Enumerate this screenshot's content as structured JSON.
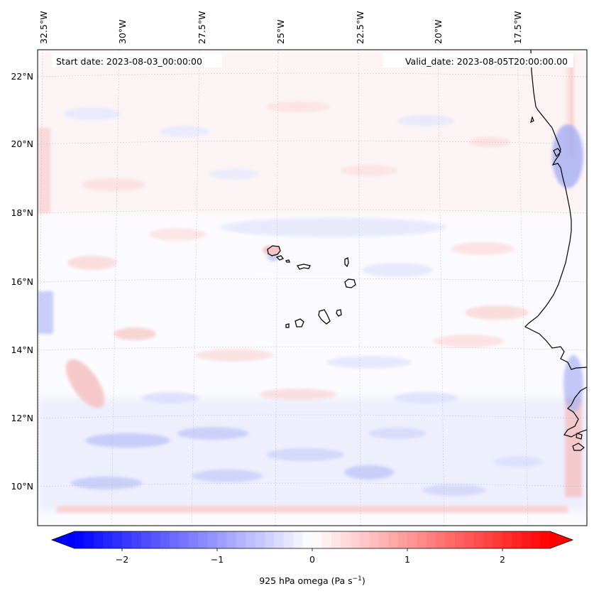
{
  "map": {
    "start_date": "Start date: 2023-08-03_00:00:00",
    "valid_date": "Valid_date: 2023-08-05T20:00:00.00",
    "top_ticks": [
      "32.5°W",
      "30°W",
      "27.5°W",
      "25°W",
      "22.5°W",
      "20°W",
      "17.5°W"
    ],
    "left_ticks": [
      "22°N",
      "20°N",
      "18°N",
      "16°N",
      "14°N",
      "12°N",
      "10°N"
    ],
    "field_description": "925 hPa vertical velocity (omega) shaded with blue-white-red diverging colormap",
    "features": [
      "Cabo Verde islands",
      "West African coastline"
    ]
  },
  "colorbar": {
    "ticks": [
      "−2",
      "−1",
      "0",
      "1",
      "2"
    ],
    "min": -2.6,
    "max": 2.6,
    "label_main": "925 hPa omega (Pa s",
    "label_exp": "−1",
    "label_close": ")",
    "neg_color": "#0000ff",
    "mid_color": "#ffffff",
    "pos_color": "#ff0000"
  },
  "chart_data": {
    "type": "heatmap",
    "title": "",
    "variable": "925 hPa omega",
    "units": "Pa s^-1",
    "colorbar_range": [
      -2.6,
      2.6
    ],
    "colorbar_ticks": [
      -2,
      -1,
      0,
      1,
      2
    ],
    "lon_ticks": [
      -32.5,
      -30,
      -27.5,
      -25,
      -22.5,
      -20,
      -17.5
    ],
    "lat_ticks": [
      22,
      20,
      18,
      16,
      14,
      12,
      10
    ],
    "lon_range": [
      -33.0,
      -16.4
    ],
    "lat_range": [
      8.9,
      22.8
    ],
    "grid": true
  }
}
